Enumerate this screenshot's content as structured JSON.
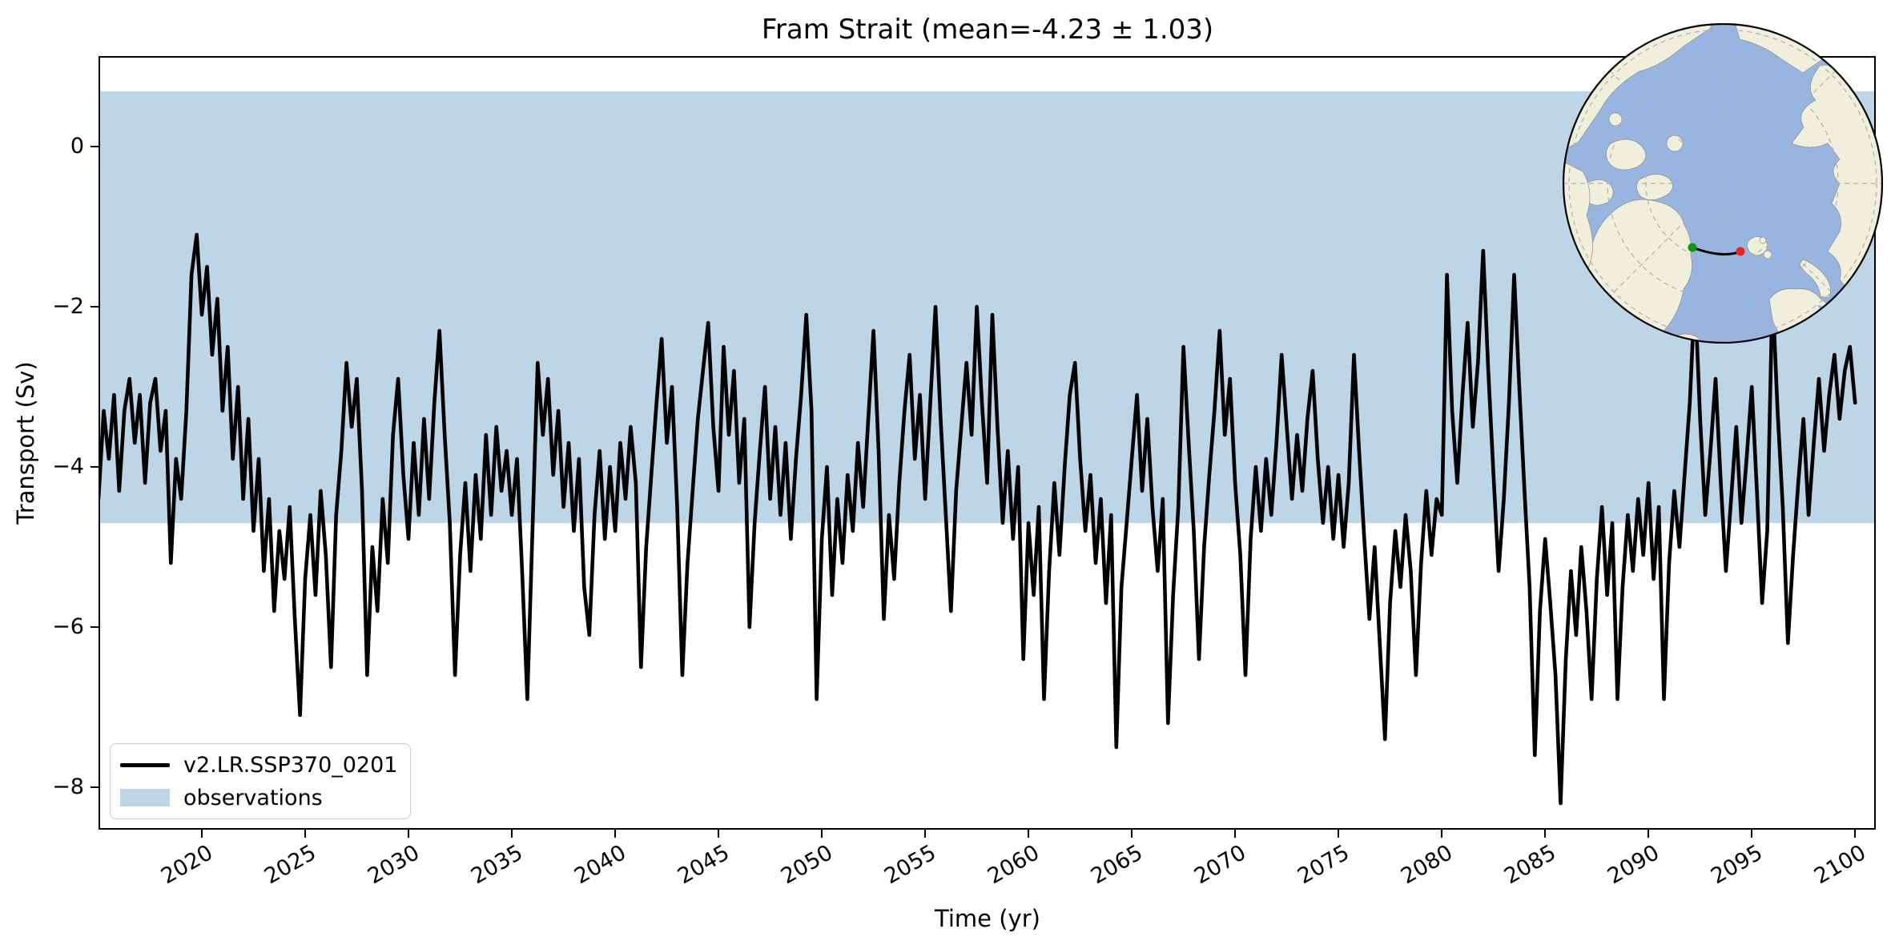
{
  "chart_data": {
    "type": "line",
    "title": "Fram Strait (mean=-4.23 ± 1.03)",
    "xlabel": "Time (yr)",
    "ylabel": "Transport (Sv)",
    "xlim": [
      2015,
      2101
    ],
    "ylim": [
      -8.53,
      1.13
    ],
    "xticks": [
      2020,
      2025,
      2030,
      2035,
      2040,
      2045,
      2050,
      2055,
      2060,
      2065,
      2070,
      2075,
      2080,
      2085,
      2090,
      2095,
      2100
    ],
    "yticks": [
      0,
      -2,
      -4,
      -6,
      -8
    ],
    "grid": false,
    "legend_position": "lower left",
    "legend": [
      {
        "type": "line",
        "color": "#000000",
        "label": "v2.LR.SSP370_0201"
      },
      {
        "type": "patch",
        "color": "#bcd6e8",
        "label": "observations"
      }
    ],
    "band": {
      "label": "observations",
      "color": "#bcd6e8",
      "y_from": 0.69,
      "y_to": -4.7
    },
    "series": [
      {
        "name": "v2.LR.SSP370_0201",
        "color": "#000000",
        "line_width": 4.6,
        "x_start": 2015.0,
        "x_step": 0.25,
        "values": [
          -4.4,
          -3.3,
          -3.9,
          -3.1,
          -4.3,
          -3.3,
          -2.9,
          -3.7,
          -3.1,
          -4.2,
          -3.2,
          -2.9,
          -3.8,
          -3.3,
          -5.2,
          -3.9,
          -4.4,
          -3.3,
          -1.6,
          -1.1,
          -2.1,
          -1.5,
          -2.6,
          -1.9,
          -3.3,
          -2.5,
          -3.9,
          -3.0,
          -4.4,
          -3.4,
          -4.8,
          -3.9,
          -5.3,
          -4.4,
          -5.8,
          -4.8,
          -5.4,
          -4.5,
          -5.9,
          -7.1,
          -5.4,
          -4.6,
          -5.6,
          -4.3,
          -5.1,
          -6.5,
          -4.6,
          -3.8,
          -2.7,
          -3.5,
          -2.9,
          -4.3,
          -6.6,
          -5.0,
          -5.8,
          -4.4,
          -5.2,
          -3.6,
          -2.9,
          -4.1,
          -4.9,
          -3.7,
          -4.6,
          -3.4,
          -4.4,
          -3.2,
          -2.3,
          -3.6,
          -4.7,
          -6.6,
          -5.1,
          -4.2,
          -5.3,
          -4.1,
          -4.9,
          -3.6,
          -4.6,
          -3.5,
          -4.3,
          -3.8,
          -4.6,
          -3.9,
          -5.3,
          -6.9,
          -4.8,
          -2.7,
          -3.6,
          -2.9,
          -4.1,
          -3.3,
          -4.5,
          -3.7,
          -4.8,
          -3.9,
          -5.5,
          -6.1,
          -4.6,
          -3.8,
          -4.9,
          -4.0,
          -4.8,
          -3.7,
          -4.4,
          -3.5,
          -4.2,
          -6.5,
          -5.0,
          -4.1,
          -3.2,
          -2.4,
          -3.7,
          -3.0,
          -4.5,
          -6.6,
          -5.2,
          -4.3,
          -3.4,
          -2.8,
          -2.2,
          -3.5,
          -4.3,
          -2.5,
          -3.6,
          -2.8,
          -4.2,
          -3.4,
          -6.0,
          -4.7,
          -3.8,
          -3.0,
          -4.4,
          -3.5,
          -4.6,
          -3.7,
          -4.9,
          -3.9,
          -3.1,
          -2.1,
          -3.3,
          -6.9,
          -4.9,
          -4.0,
          -5.6,
          -4.4,
          -5.2,
          -4.1,
          -4.8,
          -3.7,
          -4.5,
          -3.4,
          -2.3,
          -3.8,
          -5.9,
          -4.6,
          -5.4,
          -4.2,
          -3.3,
          -2.6,
          -3.9,
          -3.1,
          -4.4,
          -3.2,
          -2.0,
          -3.4,
          -4.6,
          -5.8,
          -4.3,
          -3.5,
          -2.7,
          -3.6,
          -2.0,
          -3.2,
          -4.2,
          -2.1,
          -3.5,
          -4.7,
          -3.8,
          -4.9,
          -4.0,
          -6.4,
          -4.7,
          -5.6,
          -4.5,
          -6.9,
          -5.3,
          -4.2,
          -5.1,
          -4.0,
          -3.1,
          -2.7,
          -3.9,
          -4.8,
          -4.1,
          -5.2,
          -4.4,
          -5.7,
          -4.6,
          -7.5,
          -5.5,
          -4.7,
          -3.9,
          -3.1,
          -4.3,
          -3.4,
          -4.5,
          -5.3,
          -4.4,
          -7.2,
          -5.6,
          -4.5,
          -2.5,
          -3.7,
          -4.8,
          -6.4,
          -5.0,
          -4.1,
          -3.3,
          -2.3,
          -3.6,
          -2.9,
          -4.2,
          -5.1,
          -6.6,
          -4.9,
          -4.0,
          -4.8,
          -3.9,
          -4.6,
          -3.7,
          -2.6,
          -3.5,
          -4.4,
          -3.6,
          -4.3,
          -3.4,
          -2.8,
          -3.9,
          -4.7,
          -4.0,
          -4.9,
          -4.1,
          -5.0,
          -4.2,
          -2.6,
          -3.8,
          -4.9,
          -5.9,
          -5.0,
          -6.2,
          -7.4,
          -5.7,
          -4.8,
          -5.5,
          -4.6,
          -5.3,
          -6.6,
          -5.2,
          -4.3,
          -5.1,
          -4.4,
          -4.6,
          -1.6,
          -3.3,
          -4.2,
          -3.1,
          -2.2,
          -3.5,
          -2.7,
          -1.3,
          -2.8,
          -4.1,
          -5.3,
          -4.4,
          -3.2,
          -1.6,
          -3.0,
          -4.3,
          -5.5,
          -7.6,
          -5.8,
          -4.9,
          -5.7,
          -6.6,
          -8.2,
          -6.4,
          -5.3,
          -6.1,
          -5.0,
          -5.8,
          -6.9,
          -5.4,
          -4.5,
          -5.6,
          -4.7,
          -6.9,
          -5.5,
          -4.6,
          -5.3,
          -4.4,
          -5.1,
          -4.2,
          -5.4,
          -4.5,
          -6.9,
          -5.2,
          -4.3,
          -5.0,
          -4.1,
          -3.2,
          -1.8,
          -3.4,
          -4.6,
          -3.8,
          -2.9,
          -4.2,
          -5.3,
          -4.4,
          -3.5,
          -4.7,
          -3.9,
          -3.0,
          -4.3,
          -5.7,
          -4.8,
          -1.8,
          -3.3,
          -4.5,
          -6.2,
          -5.1,
          -4.2,
          -3.4,
          -4.6,
          -3.7,
          -2.9,
          -3.8,
          -3.1,
          -2.6,
          -3.4,
          -2.8,
          -2.5,
          -3.2
        ]
      }
    ]
  },
  "inset_map": {
    "projection": "north-polar-stereographic",
    "ocean_color": "#96b5e0",
    "land_color": "#efefdb",
    "graticule_color": "#b0b0b0",
    "circle_edge_color": "#000000",
    "section": {
      "line_color": "#000000",
      "start_marker_color": "#0a9a0a",
      "end_marker_color": "#f02418"
    }
  }
}
